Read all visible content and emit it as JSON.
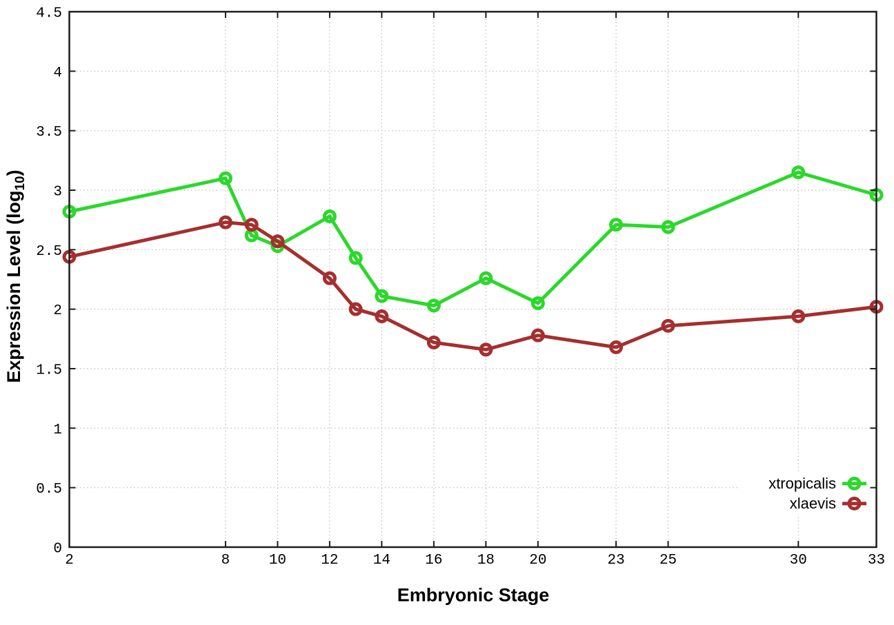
{
  "chart_data": {
    "type": "line",
    "title": "",
    "xlabel": "Embryonic Stage",
    "ylabel": "Expression Level (log10)",
    "ylabel_parts": {
      "prefix": "Expression Level (log",
      "sub": "10",
      "suffix": ")"
    },
    "x": [
      2,
      8,
      9,
      10,
      12,
      13,
      14,
      16,
      18,
      20,
      23,
      25,
      30,
      33
    ],
    "series": [
      {
        "name": "xtropicalis",
        "color": "#2bd82b",
        "values": [
          2.82,
          3.1,
          2.62,
          2.53,
          2.78,
          2.43,
          2.11,
          2.03,
          2.26,
          2.05,
          2.71,
          2.69,
          3.15,
          2.96
        ]
      },
      {
        "name": "xlaevis",
        "color": "#a52f2f",
        "values": [
          2.44,
          2.73,
          2.71,
          2.57,
          2.26,
          2.0,
          1.94,
          1.72,
          1.66,
          1.78,
          1.68,
          1.86,
          1.94,
          2.02
        ]
      }
    ],
    "xticks": [
      "2",
      "8",
      "10",
      "12",
      "14",
      "16",
      "18",
      "20",
      "23",
      "25",
      "30",
      "33"
    ],
    "yticks": [
      "0",
      "0.5",
      "1",
      "1.5",
      "2",
      "2.5",
      "3",
      "3.5",
      "4",
      "4.5"
    ],
    "xlim": [
      2,
      33
    ],
    "ylim": [
      0,
      4.5
    ],
    "grid": true,
    "legend_position": "bottom-right",
    "colors": {
      "grid": "#aaaaaa",
      "border": "#1c1c1c",
      "text": "#000000",
      "background": "#ffffff"
    }
  }
}
